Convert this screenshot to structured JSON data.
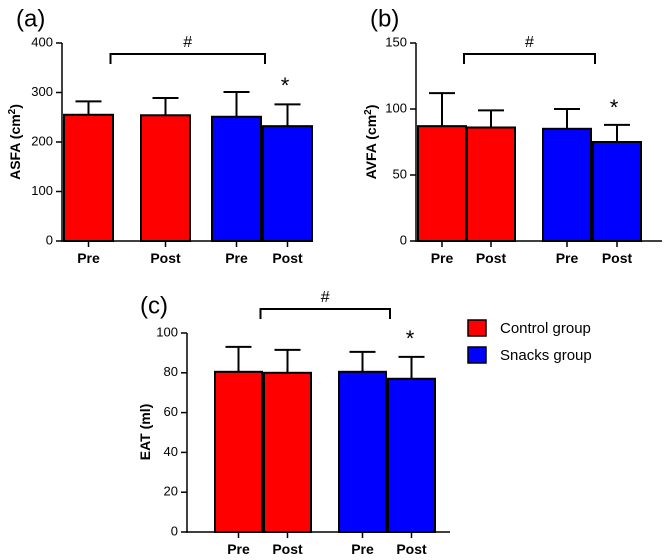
{
  "chart_data": [
    {
      "panel_label": "(a)",
      "type": "bar",
      "ylabel_main": "ASFA (cm",
      "ylabel_sup": "2",
      "ylabel_end": ")",
      "ylim": [
        0,
        400
      ],
      "yticks": [
        0,
        100,
        200,
        300,
        400
      ],
      "categories": [
        "Pre",
        "Post",
        "Pre",
        "Post"
      ],
      "groups": [
        "Control group",
        "Control group",
        "Snacks group",
        "Snacks group"
      ],
      "values": [
        255,
        254,
        251,
        232
      ],
      "errors": [
        27,
        35,
        50,
        44
      ],
      "bracket_label": "#",
      "star_label": "*"
    },
    {
      "panel_label": "(b)",
      "type": "bar",
      "ylabel_main": "AVFA (cm",
      "ylabel_sup": "2",
      "ylabel_end": ")",
      "ylim": [
        0,
        150
      ],
      "yticks": [
        0,
        50,
        100,
        150
      ],
      "categories": [
        "Pre",
        "Post",
        "Pre",
        "Post"
      ],
      "groups": [
        "Control group",
        "Control group",
        "Snacks group",
        "Snacks group"
      ],
      "values": [
        87,
        86,
        85,
        75
      ],
      "errors": [
        25,
        13,
        15,
        13
      ],
      "bracket_label": "#",
      "star_label": "*"
    },
    {
      "panel_label": "(c)",
      "type": "bar",
      "ylabel_main": "EAT (ml)",
      "ylabel_sup": "",
      "ylabel_end": "",
      "ylim": [
        0,
        100
      ],
      "yticks": [
        0,
        20,
        40,
        60,
        80,
        100
      ],
      "categories": [
        "Pre",
        "Post",
        "Pre",
        "Post"
      ],
      "groups": [
        "Control group",
        "Control group",
        "Snacks group",
        "Snacks group"
      ],
      "values": [
        80.5,
        80,
        80.5,
        77
      ],
      "errors": [
        12.5,
        11.5,
        10,
        11
      ],
      "bracket_label": "#",
      "star_label": "*"
    }
  ],
  "legend": [
    {
      "label": "Control group",
      "color": "#ff0000"
    },
    {
      "label": "Snacks group",
      "color": "#0000ff"
    }
  ],
  "colors": {
    "control": "#ff0000",
    "snacks": "#0000ff",
    "ink": "#000000"
  }
}
